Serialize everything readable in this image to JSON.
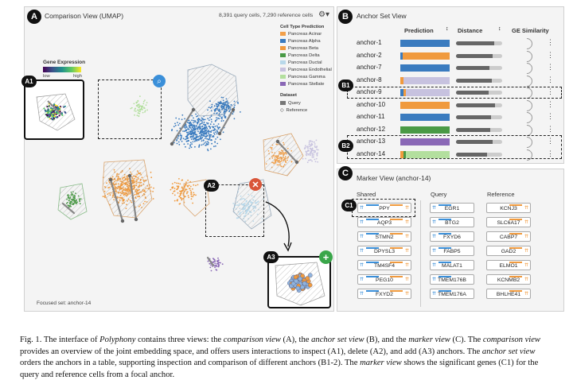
{
  "comparison": {
    "badge": "A",
    "title": "Comparison View (UMAP)",
    "counts": "8,391 query cells, 7,290 reference cells",
    "legend_title": "Cell Type Prediction",
    "legend": [
      {
        "label": "Pancreas Acinar",
        "color": "#f2a04a"
      },
      {
        "label": "Pancreas Alpha",
        "color": "#3a7bbf"
      },
      {
        "label": "Pancreas Beta",
        "color": "#f09a3e"
      },
      {
        "label": "Pancreas Delta",
        "color": "#4a9a46"
      },
      {
        "label": "Pancreas Ductal",
        "color": "#b8d8ea"
      },
      {
        "label": "Pancreas Endothelial",
        "color": "#c7c2df"
      },
      {
        "label": "Pancreas Gamma",
        "color": "#b3df9e"
      },
      {
        "label": "Pancreas Stellate",
        "color": "#8a68b6"
      }
    ],
    "dataset_title": "Dataset",
    "dataset_query": "Query",
    "dataset_reference": "Reference",
    "gene_expr_title": "Gene Expression",
    "gene_expr_low": "low",
    "gene_expr_high": "high",
    "focused": "Focused set: anchor-14",
    "sub_a1": "A1",
    "sub_a2": "A2",
    "sub_a3": "A3"
  },
  "anchor_set": {
    "badge": "B",
    "title": "Anchor Set View",
    "col_prediction": "Prediction",
    "col_distance": "Distance",
    "col_ge": "GE Similarity",
    "sub_b1": "B1",
    "sub_b2": "B2",
    "rows": [
      {
        "label": "anchor-1",
        "colors": [
          "#3a7bbf"
        ],
        "dist": 0.82
      },
      {
        "label": "anchor-2",
        "colors": [
          "#3a7bbf",
          "#f09a3e"
        ],
        "dist": 0.8
      },
      {
        "label": "anchor-7",
        "colors": [
          "#3a7bbf"
        ],
        "dist": 0.72
      },
      {
        "label": "anchor-8",
        "colors": [
          "#f09a3e",
          "#c7c2df"
        ],
        "dist": 0.78
      },
      {
        "label": "anchor-9",
        "colors": [
          "#3a7bbf",
          "#f09a3e",
          "#c7c2df"
        ],
        "dist": 0.7
      },
      {
        "label": "anchor-10",
        "colors": [
          "#f09a3e"
        ],
        "dist": 0.84
      },
      {
        "label": "anchor-11",
        "colors": [
          "#3a7bbf"
        ],
        "dist": 0.76
      },
      {
        "label": "anchor-12",
        "colors": [
          "#4a9a46"
        ],
        "dist": 0.74
      },
      {
        "label": "anchor-13",
        "colors": [
          "#8a68b6"
        ],
        "dist": 0.8
      },
      {
        "label": "anchor-14",
        "colors": [
          "#f09a3e",
          "#4a9a46",
          "#b3df9e"
        ],
        "dist": 0.68
      }
    ]
  },
  "marker": {
    "badge": "C",
    "title": "Marker View (anchor-14)",
    "col_shared": "Shared",
    "col_query": "Query",
    "col_reference": "Reference",
    "sub_c1": "C1",
    "shared": [
      "PPY",
      "AQP3",
      "STMN2",
      "DPYSL3",
      "TM4SF4",
      "PEG10",
      "FXYD2"
    ],
    "query": [
      "EGR1",
      "BTG2",
      "FXYD6",
      "FABP5",
      "MALAT1",
      "TMEM176B",
      "TMEM176A"
    ],
    "reference": [
      "KCNJ3",
      "SLC6A17",
      "CABP7",
      "GAD2",
      "ELMO1",
      "KCNMB2",
      "BHLHE41"
    ]
  },
  "caption": {
    "p1": "Fig. 1. The interface of ",
    "i1": "Polyphony",
    "p2": " contains three views: the ",
    "i2": "comparison view",
    "p3": " (A), the ",
    "i3": "anchor set view",
    "p4": " (B), and the ",
    "i4": "marker view",
    "p5": " (C). The ",
    "i5": "comparison view",
    "p6": " provides an overview of the joint embedding space, and offers users interactions to inspect (A1), delete (A2), and add (A3) anchors. The ",
    "i6": "anchor set view",
    "p7": " orders the anchors in a table, supporting inspection and comparison of different anchors (B1-2). The ",
    "i7": "marker view",
    "p8": " shows the significant genes (C1) for the query and reference cells from a focal anchor."
  }
}
